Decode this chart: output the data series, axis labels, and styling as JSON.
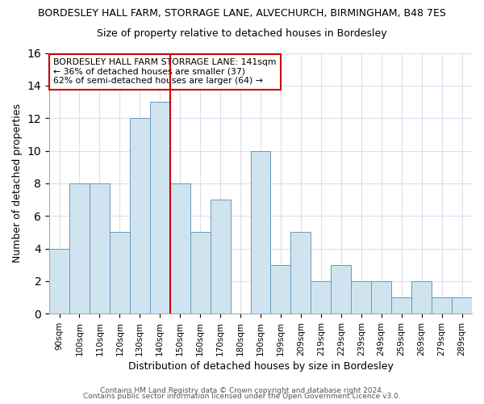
{
  "title1": "BORDESLEY HALL FARM, STORRAGE LANE, ALVECHURCH, BIRMINGHAM, B48 7ES",
  "title2": "Size of property relative to detached houses in Bordesley",
  "xlabel": "Distribution of detached houses by size in Bordesley",
  "ylabel": "Number of detached properties",
  "bar_color": "#d0e4f0",
  "bar_edge_color": "#6699bb",
  "categories": [
    "90sqm",
    "100sqm",
    "110sqm",
    "120sqm",
    "130sqm",
    "140sqm",
    "150sqm",
    "160sqm",
    "170sqm",
    "180sqm",
    "190sqm",
    "199sqm",
    "209sqm",
    "219sqm",
    "229sqm",
    "239sqm",
    "249sqm",
    "259sqm",
    "269sqm",
    "279sqm",
    "289sqm"
  ],
  "values": [
    4,
    8,
    8,
    5,
    12,
    13,
    8,
    5,
    7,
    0,
    10,
    3,
    5,
    2,
    3,
    2,
    2,
    1,
    2,
    1,
    1
  ],
  "ylim": [
    0,
    16
  ],
  "yticks": [
    0,
    2,
    4,
    6,
    8,
    10,
    12,
    14,
    16
  ],
  "vline_position": 5.5,
  "vline_color": "#cc0000",
  "annotation_title": "BORDESLEY HALL FARM STORRAGE LANE: 141sqm",
  "annotation_line1": "← 36% of detached houses are smaller (37)",
  "annotation_line2": "62% of semi-detached houses are larger (64) →",
  "annotation_box_color": "#ffffff",
  "annotation_box_edge": "#cc0000",
  "footer1": "Contains HM Land Registry data © Crown copyright and database right 2024.",
  "footer2": "Contains public sector information licensed under the Open Government Licence v3.0.",
  "background_color": "#ffffff",
  "plot_bg_color": "#ffffff",
  "grid_color": "#ddddee"
}
